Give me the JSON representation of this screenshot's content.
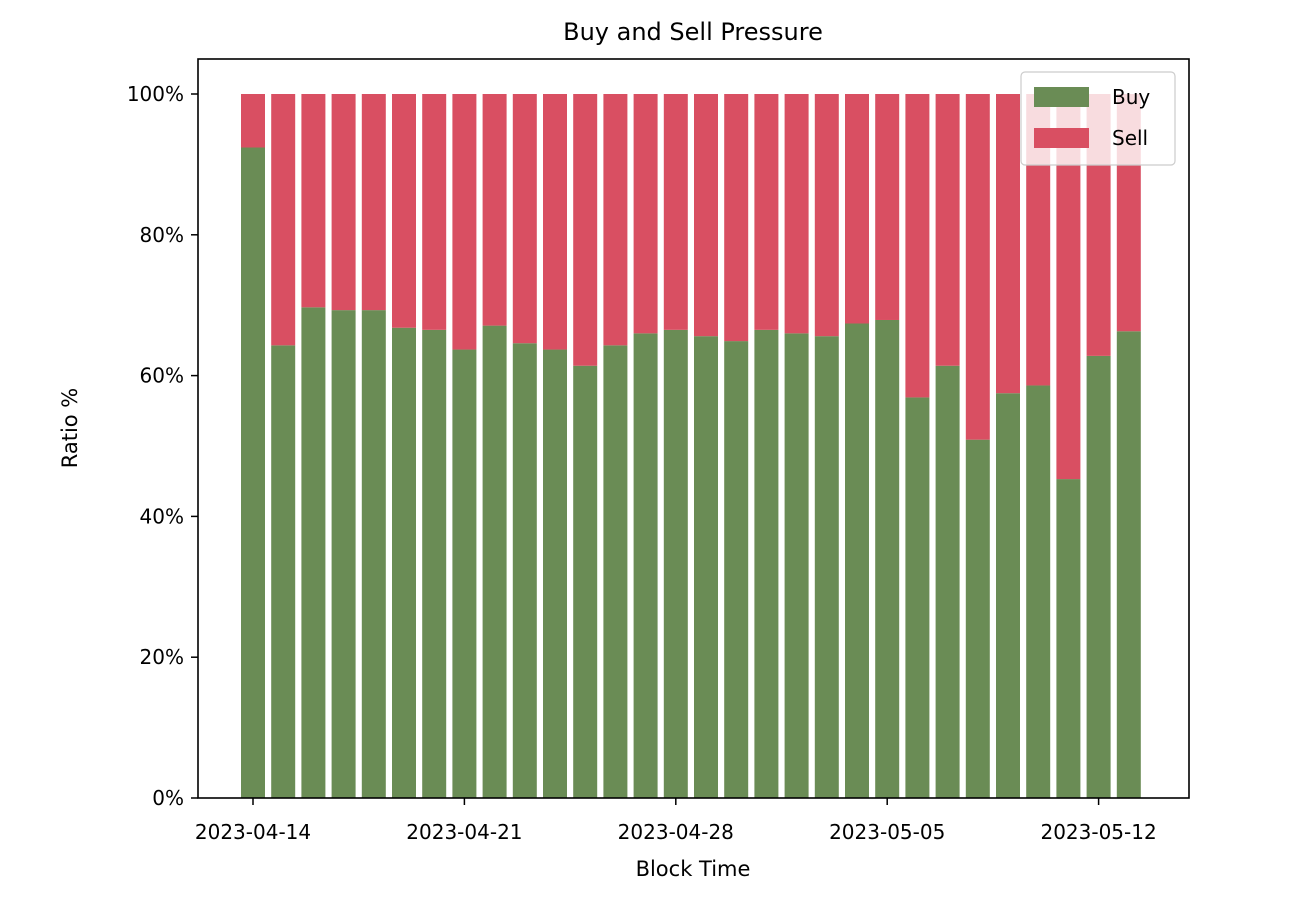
{
  "chart_data": {
    "type": "bar",
    "stacked": true,
    "title": "Buy and Sell Pressure",
    "xlabel": "Block Time",
    "ylabel": "Ratio %",
    "ylim": [
      0,
      100
    ],
    "y_ticks": [
      "0%",
      "20%",
      "40%",
      "60%",
      "80%",
      "100%"
    ],
    "x_ticks": [
      "2023-04-14",
      "2023-04-21",
      "2023-04-28",
      "2023-05-05",
      "2023-05-12"
    ],
    "categories": [
      "2023-04-14",
      "2023-04-15",
      "2023-04-16",
      "2023-04-17",
      "2023-04-18",
      "2023-04-19",
      "2023-04-20",
      "2023-04-21",
      "2023-04-22",
      "2023-04-23",
      "2023-04-24",
      "2023-04-25",
      "2023-04-26",
      "2023-04-27",
      "2023-04-28",
      "2023-04-29",
      "2023-04-30",
      "2023-05-01",
      "2023-05-02",
      "2023-05-03",
      "2023-05-04",
      "2023-05-05",
      "2023-05-06",
      "2023-05-07",
      "2023-05-08",
      "2023-05-09",
      "2023-05-10",
      "2023-05-11",
      "2023-05-12",
      "2023-05-13"
    ],
    "series": [
      {
        "name": "Buy",
        "color": "#6a8c55",
        "values": [
          92.4,
          64.3,
          69.7,
          69.3,
          69.3,
          66.8,
          66.5,
          63.7,
          67.1,
          64.6,
          63.7,
          61.4,
          64.3,
          66.0,
          66.5,
          65.6,
          64.9,
          66.5,
          66.0,
          65.6,
          67.4,
          67.9,
          56.9,
          61.4,
          50.9,
          57.5,
          58.6,
          45.3,
          62.8,
          66.3
        ]
      },
      {
        "name": "Sell",
        "color": "#d94f62",
        "values": [
          7.6,
          35.7,
          30.3,
          30.7,
          30.7,
          33.2,
          33.5,
          36.3,
          32.9,
          35.4,
          36.3,
          38.6,
          35.7,
          34.0,
          33.5,
          34.4,
          35.1,
          33.5,
          34.0,
          34.4,
          32.6,
          32.1,
          43.1,
          38.6,
          49.1,
          42.5,
          41.4,
          54.7,
          37.2,
          33.7
        ]
      }
    ],
    "legend_position": "top-right",
    "grid": false
  }
}
